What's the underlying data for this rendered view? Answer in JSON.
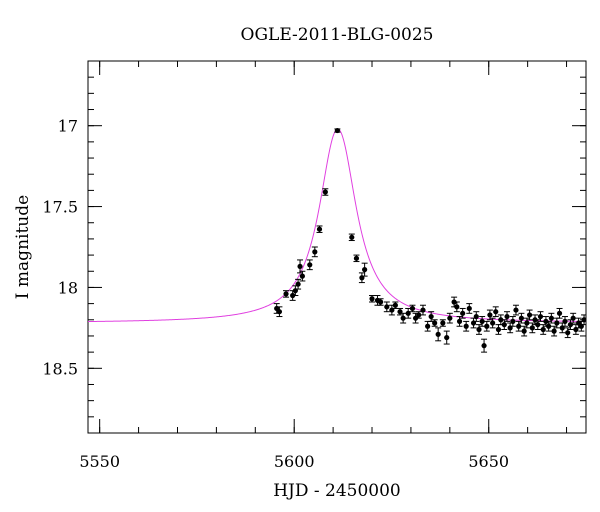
{
  "chart_data": {
    "type": "scatter",
    "title": "OGLE-2011-BLG-0025",
    "xlabel": "HJD - 2450000",
    "ylabel": "I magnitude",
    "xlim": [
      5547,
      5675
    ],
    "ylim": [
      18.9,
      16.6
    ],
    "y_inverted": true,
    "grid": false,
    "x_ticks": [
      5550,
      5600,
      5650
    ],
    "x_tick_labels": [
      "5550",
      "5600",
      "5650"
    ],
    "y_ticks": [
      17,
      17.5,
      18,
      18.5
    ],
    "y_tick_labels": [
      "17",
      "17.5",
      "18",
      "18.5"
    ],
    "model_color": "#e040e0",
    "point_color": "#000000",
    "series": [
      {
        "type": "line",
        "model": {
          "t0": 5611.2,
          "peak_mag": 17.02,
          "baseline_mag": 18.22,
          "width": 3.2
        },
        "values": "computed from model"
      },
      {
        "type": "scatter_errorbar",
        "points": [
          [
            5595.5,
            18.13,
            0.03
          ],
          [
            5596.2,
            18.15,
            0.03
          ],
          [
            5597.9,
            18.04,
            0.02
          ],
          [
            5599.6,
            18.05,
            0.03
          ],
          [
            5600.3,
            18.02,
            0.03
          ],
          [
            5601.0,
            17.98,
            0.03
          ],
          [
            5601.5,
            17.87,
            0.04
          ],
          [
            5602.1,
            17.93,
            0.03
          ],
          [
            5604.0,
            17.86,
            0.03
          ],
          [
            5605.3,
            17.78,
            0.03
          ],
          [
            5606.5,
            17.64,
            0.02
          ],
          [
            5608.0,
            17.41,
            0.02
          ],
          [
            5611.1,
            17.03,
            0.01
          ],
          [
            5614.8,
            17.69,
            0.02
          ],
          [
            5616.0,
            17.82,
            0.02
          ],
          [
            5617.4,
            17.94,
            0.03
          ],
          [
            5618.1,
            17.89,
            0.04
          ],
          [
            5620.0,
            18.07,
            0.02
          ],
          [
            5621.4,
            18.08,
            0.03
          ],
          [
            5622.2,
            18.09,
            0.02
          ],
          [
            5623.8,
            18.12,
            0.03
          ],
          [
            5625.1,
            18.14,
            0.03
          ],
          [
            5626.0,
            18.11,
            0.02
          ],
          [
            5627.2,
            18.15,
            0.02
          ],
          [
            5628.0,
            18.19,
            0.03
          ],
          [
            5629.3,
            18.16,
            0.03
          ],
          [
            5630.4,
            18.13,
            0.02
          ],
          [
            5631.2,
            18.19,
            0.03
          ],
          [
            5632.0,
            18.17,
            0.02
          ],
          [
            5633.1,
            18.14,
            0.03
          ],
          [
            5634.3,
            18.24,
            0.03
          ],
          [
            5635.2,
            18.18,
            0.03
          ],
          [
            5636.1,
            18.22,
            0.02
          ],
          [
            5637.0,
            18.29,
            0.04
          ],
          [
            5638.2,
            18.22,
            0.02
          ],
          [
            5639.2,
            18.31,
            0.04
          ],
          [
            5640.0,
            18.19,
            0.03
          ],
          [
            5641.1,
            18.09,
            0.03
          ],
          [
            5641.8,
            18.12,
            0.03
          ],
          [
            5642.5,
            18.21,
            0.03
          ],
          [
            5643.3,
            18.16,
            0.03
          ],
          [
            5644.2,
            18.24,
            0.03
          ],
          [
            5645.0,
            18.13,
            0.03
          ],
          [
            5646.1,
            18.22,
            0.03
          ],
          [
            5646.8,
            18.18,
            0.03
          ],
          [
            5647.5,
            18.26,
            0.03
          ],
          [
            5648.3,
            18.21,
            0.03
          ],
          [
            5648.8,
            18.36,
            0.04
          ],
          [
            5649.5,
            18.24,
            0.03
          ],
          [
            5650.3,
            18.17,
            0.03
          ],
          [
            5651.0,
            18.22,
            0.03
          ],
          [
            5651.8,
            18.15,
            0.03
          ],
          [
            5652.5,
            18.26,
            0.03
          ],
          [
            5653.1,
            18.2,
            0.03
          ],
          [
            5654.0,
            18.23,
            0.03
          ],
          [
            5654.7,
            18.18,
            0.03
          ],
          [
            5655.5,
            18.25,
            0.03
          ],
          [
            5656.2,
            18.21,
            0.03
          ],
          [
            5657.0,
            18.14,
            0.03
          ],
          [
            5657.7,
            18.24,
            0.03
          ],
          [
            5658.4,
            18.19,
            0.03
          ],
          [
            5659.1,
            18.27,
            0.03
          ],
          [
            5659.8,
            18.22,
            0.03
          ],
          [
            5660.5,
            18.17,
            0.03
          ],
          [
            5661.2,
            18.25,
            0.03
          ],
          [
            5661.9,
            18.2,
            0.03
          ],
          [
            5662.6,
            18.23,
            0.03
          ],
          [
            5663.3,
            18.18,
            0.03
          ],
          [
            5664.0,
            18.26,
            0.03
          ],
          [
            5664.7,
            18.21,
            0.03
          ],
          [
            5665.4,
            18.24,
            0.03
          ],
          [
            5666.1,
            18.19,
            0.03
          ],
          [
            5666.8,
            18.27,
            0.03
          ],
          [
            5667.5,
            18.22,
            0.03
          ],
          [
            5668.2,
            18.16,
            0.03
          ],
          [
            5668.9,
            18.25,
            0.03
          ],
          [
            5669.6,
            18.21,
            0.03
          ],
          [
            5670.3,
            18.28,
            0.03
          ],
          [
            5671.0,
            18.23,
            0.03
          ],
          [
            5671.7,
            18.19,
            0.03
          ],
          [
            5672.4,
            18.26,
            0.03
          ],
          [
            5673.1,
            18.22,
            0.03
          ],
          [
            5673.8,
            18.24,
            0.03
          ],
          [
            5674.5,
            18.2,
            0.03
          ]
        ]
      }
    ]
  }
}
